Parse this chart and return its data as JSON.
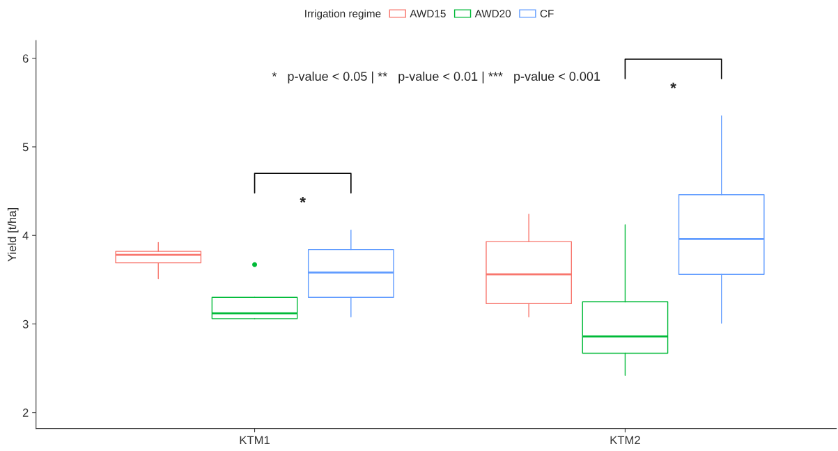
{
  "chart_data": {
    "type": "box",
    "ylabel": "Yield [t/ha]",
    "legend_title": "Irrigation regime",
    "categories": [
      "KTM1",
      "KTM2"
    ],
    "series": [
      {
        "name": "AWD15",
        "color": "#f8766d",
        "boxes": [
          {
            "low": 3.51,
            "q1": 3.69,
            "median": 3.78,
            "q3": 3.82,
            "high": 3.92
          },
          {
            "low": 3.08,
            "q1": 3.23,
            "median": 3.56,
            "q3": 3.93,
            "high": 4.24
          }
        ]
      },
      {
        "name": "AWD20",
        "color": "#00ba38",
        "boxes": [
          {
            "low": 3.06,
            "q1": 3.06,
            "median": 3.12,
            "q3": 3.3,
            "high": 3.3,
            "outliers": [
              3.67
            ]
          },
          {
            "low": 2.42,
            "q1": 2.67,
            "median": 2.86,
            "q3": 3.25,
            "high": 4.12
          }
        ]
      },
      {
        "name": "CF",
        "color": "#619cff",
        "boxes": [
          {
            "low": 3.08,
            "q1": 3.3,
            "median": 3.58,
            "q3": 3.84,
            "high": 4.06
          },
          {
            "low": 3.01,
            "q1": 3.56,
            "median": 3.96,
            "q3": 4.46,
            "high": 5.35
          }
        ]
      }
    ],
    "annotations": [
      "*   p-value < 0.05 | **   p-value < 0.01 | ***   p-value < 0.001",
      "*",
      "*"
    ],
    "ylim": [
      1.82,
      6.2
    ],
    "yticks": [
      2,
      3,
      4,
      5,
      6
    ],
    "grid": false,
    "legend": "top"
  }
}
